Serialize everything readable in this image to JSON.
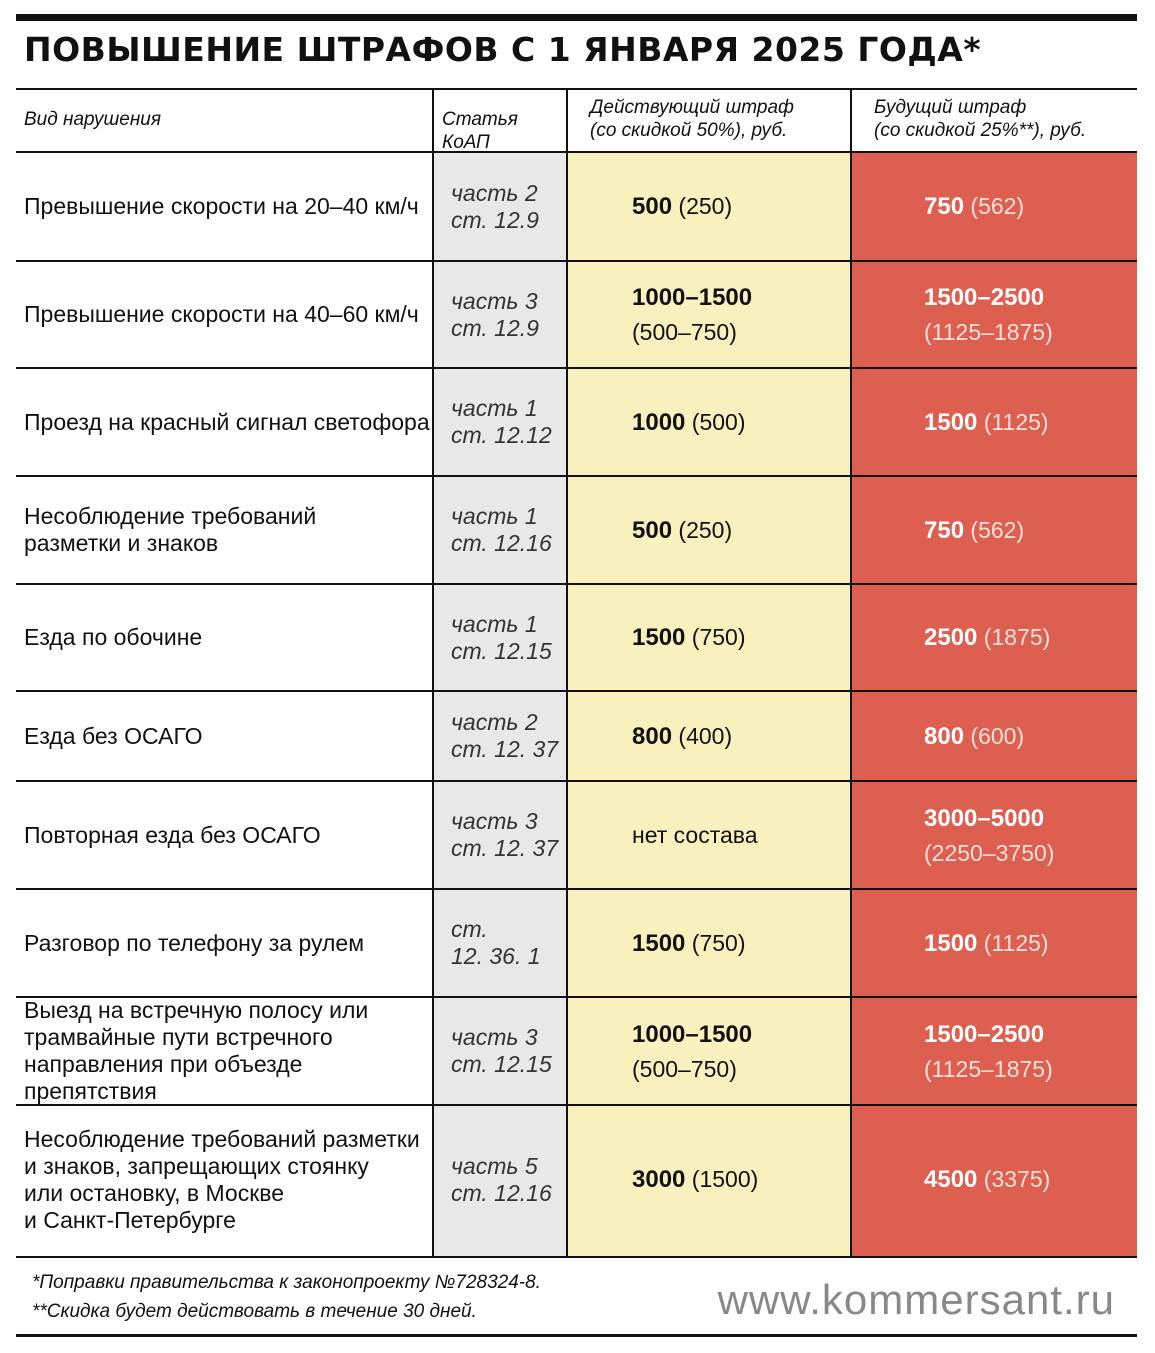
{
  "title": "ПОВЫШЕНИЕ ШТРАФОВ С 1 ЯНВАРЯ 2025 ГОДА*",
  "columns": {
    "violation": "Вид нарушения",
    "article": "Статья КоАП",
    "current": "Действующий штраф\n(со скидкой 50%), руб.",
    "future": "Будущий штраф\n(со скидкой 25%**), руб."
  },
  "colors": {
    "article_bg": "#e8e8e8",
    "current_bg": "#f9f1bd",
    "future_bg": "#dd5f4f"
  },
  "rows": [
    {
      "violation": "Превышение скорости на 20–40 км/ч",
      "article": "часть 2\nст. 12.9",
      "current_main": "500",
      "current_disc": " (250)",
      "future_main": "750",
      "future_disc": " (562)"
    },
    {
      "violation": "Превышение скорости на 40–60 км/ч",
      "article": "часть 3\nст. 12.9",
      "current_main": "1000–1500",
      "current_disc": "\n(500–750)",
      "future_main": "1500–2500",
      "future_disc": "\n(1125–1875)"
    },
    {
      "violation": "Проезд на красный сигнал светофора",
      "article": "часть 1\nст. 12.12",
      "current_main": "1000",
      "current_disc": " (500)",
      "future_main": "1500",
      "future_disc": " (1125)"
    },
    {
      "violation": "Несоблюдение требований\nразметки и знаков",
      "article": "часть 1\nст. 12.16",
      "current_main": "500",
      "current_disc": " (250)",
      "future_main": "750",
      "future_disc": " (562)"
    },
    {
      "violation": "Езда по обочине",
      "article": "часть 1\nст. 12.15",
      "current_main": "1500",
      "current_disc": " (750)",
      "future_main": "2500",
      "future_disc": " (1875)"
    },
    {
      "violation": "Езда без ОСАГО",
      "article": "часть 2\nст. 12. 37",
      "current_main": "800",
      "current_disc": " (400)",
      "future_main": "800",
      "future_disc": " (600)"
    },
    {
      "violation": "Повторная езда без ОСАГО",
      "article": "часть 3\nст. 12. 37",
      "current_main": "",
      "current_disc": "нет состава",
      "future_main": "3000–5000",
      "future_disc": "\n(2250–3750)"
    },
    {
      "violation": "Разговор по телефону за рулем",
      "article": "ст.\n12. 36. 1",
      "current_main": "1500",
      "current_disc": " (750)",
      "future_main": "1500",
      "future_disc": " (1125)"
    },
    {
      "violation": "Выезд на встречную полосу или\nтрамвайные пути встречного\nнаправления при объезде препятствия",
      "article": "часть 3\nст. 12.15",
      "current_main": "1000–1500",
      "current_disc": "\n(500–750)",
      "future_main": "1500–2500",
      "future_disc": "\n(1125–1875)"
    },
    {
      "violation": "Несоблюдение требований разметки\nи знаков, запрещающих стоянку\nили остановку, в Москве\nи Санкт-Петербурге",
      "article": "часть 5\nст. 12.16",
      "current_main": "3000",
      "current_disc": " (1500)",
      "future_main": "4500",
      "future_disc": " (3375)"
    }
  ],
  "footnotes": [
    "*Поправки правительства к законопроекту №728324-8.",
    "**Скидка будет действовать в течение 30 дней."
  ],
  "site": "www.kommersant.ru"
}
